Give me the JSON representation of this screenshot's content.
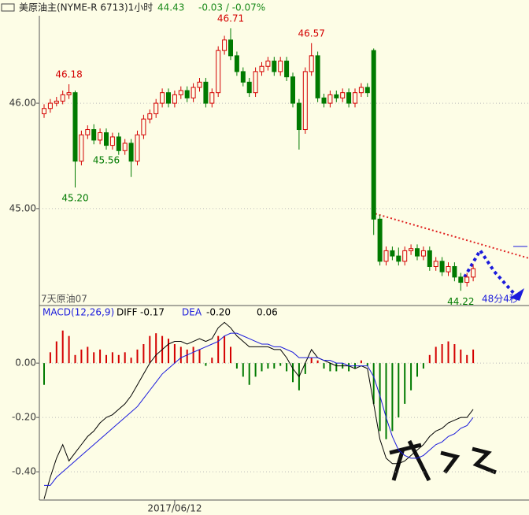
{
  "chart_data": [
    {
      "type": "candlestick",
      "title": "美原油主(NYME-R 6713)1小时",
      "last": 44.43,
      "change": "-0.03 / -0.07%",
      "contract": "7天原油07",
      "countdown": "48分4秒",
      "up_color": "#d40000",
      "down_color": "#007a00",
      "ylim": [
        44.08,
        46.83
      ],
      "yticks": [
        {
          "value": 46,
          "label": "46.00"
        },
        {
          "value": 45,
          "label": "45.00"
        }
      ],
      "grid": true,
      "annotations": [
        46.71,
        46.18,
        46.57,
        {
          "value": 45.2,
          "label": "45.20"
        },
        45.56,
        44.22
      ],
      "open": [
        45.9,
        45.95,
        46.0,
        46.02,
        46.08,
        46.1,
        45.45,
        45.7,
        45.75,
        45.65,
        45.72,
        45.6,
        45.68,
        45.55,
        45.62,
        45.45,
        45.7,
        45.85,
        45.9,
        46.0,
        46.1,
        46.0,
        46.08,
        46.12,
        46.05,
        46.15,
        46.2,
        46.0,
        46.1,
        46.5,
        46.6,
        46.45,
        46.3,
        46.2,
        46.1,
        46.3,
        46.35,
        46.4,
        46.3,
        46.4,
        46.25,
        46.0,
        45.75,
        46.3,
        46.45,
        46.05,
        46.0,
        46.08,
        46.05,
        46.1,
        46.0,
        46.1,
        46.15,
        46.5,
        44.9,
        44.5,
        44.6,
        44.55,
        44.5,
        44.6,
        44.62,
        44.55,
        44.6,
        44.45,
        44.5,
        44.4,
        44.45,
        44.35,
        44.3,
        44.35
      ],
      "high": [
        45.99,
        46.04,
        46.06,
        46.12,
        46.18,
        46.12,
        45.74,
        45.79,
        45.8,
        45.76,
        45.76,
        45.72,
        45.72,
        45.66,
        45.66,
        45.74,
        45.89,
        45.94,
        46.04,
        46.14,
        46.14,
        46.12,
        46.16,
        46.16,
        46.19,
        46.24,
        46.24,
        46.14,
        46.54,
        46.64,
        46.71,
        46.49,
        46.34,
        46.24,
        46.34,
        46.39,
        46.44,
        46.44,
        46.44,
        46.44,
        46.29,
        46.04,
        46.34,
        46.57,
        46.49,
        46.09,
        46.12,
        46.12,
        46.14,
        46.14,
        46.14,
        46.19,
        46.19,
        46.52,
        44.94,
        44.64,
        44.64,
        44.63,
        44.64,
        44.66,
        44.66,
        44.64,
        44.64,
        44.54,
        44.54,
        44.49,
        44.49,
        44.39,
        44.39,
        44.47
      ],
      "low": [
        45.86,
        45.91,
        45.97,
        45.99,
        46.04,
        45.2,
        45.41,
        45.66,
        45.61,
        45.61,
        45.56,
        45.56,
        45.51,
        45.51,
        45.3,
        45.41,
        45.66,
        45.81,
        45.86,
        45.96,
        45.96,
        45.96,
        46.04,
        46.01,
        46.01,
        46.11,
        45.96,
        45.96,
        46.06,
        46.46,
        46.41,
        46.26,
        46.16,
        46.06,
        46.06,
        46.26,
        46.31,
        46.26,
        46.26,
        46.21,
        45.96,
        45.56,
        45.71,
        46.26,
        46.01,
        45.96,
        45.96,
        46.01,
        46.01,
        45.96,
        45.96,
        46.06,
        46.06,
        44.75,
        44.46,
        44.46,
        44.51,
        44.46,
        44.46,
        44.56,
        44.51,
        44.51,
        44.41,
        44.41,
        44.36,
        44.36,
        44.31,
        44.22,
        44.26,
        44.31
      ],
      "close": [
        45.95,
        46.0,
        46.02,
        46.08,
        46.1,
        45.45,
        45.7,
        45.75,
        45.65,
        45.72,
        45.6,
        45.68,
        45.55,
        45.62,
        45.45,
        45.7,
        45.85,
        45.9,
        46.0,
        46.1,
        46.0,
        46.08,
        46.12,
        46.05,
        46.15,
        46.2,
        46.0,
        46.1,
        46.5,
        46.6,
        46.45,
        46.3,
        46.2,
        46.1,
        46.3,
        46.35,
        46.4,
        46.3,
        46.4,
        46.25,
        46.0,
        45.75,
        46.3,
        46.45,
        46.05,
        46.0,
        46.08,
        46.05,
        46.1,
        46.0,
        46.1,
        46.15,
        46.1,
        44.9,
        44.5,
        44.6,
        44.55,
        44.5,
        44.6,
        44.62,
        44.55,
        44.6,
        44.45,
        44.5,
        44.4,
        44.45,
        44.35,
        44.3,
        44.35,
        44.43
      ]
    },
    {
      "type": "macd",
      "title": "MACD(12,26,9)",
      "readout": [
        {
          "name": "DIFF",
          "value": -0.17
        },
        {
          "name": "DEA",
          "value": {
            "value": -0.2,
            "label": "-0.20"
          }
        },
        {
          "value": 0.06
        }
      ],
      "ylim": [
        -0.504,
        0.212
      ],
      "yticks": [
        {
          "value": 0,
          "label": "0.00"
        },
        {
          "value": -0.2,
          "label": "-0.20"
        },
        {
          "value": -0.4,
          "label": "-0.40"
        }
      ],
      "grid": true,
      "categories": [
        null,
        null,
        null,
        null,
        null,
        null,
        null,
        null,
        null,
        null,
        null,
        null,
        null,
        null,
        null,
        null,
        null,
        null,
        null,
        null,
        null,
        "2017/06/12",
        null,
        null,
        null,
        null,
        null,
        null,
        null,
        null,
        null,
        null,
        null,
        null,
        null,
        null,
        null,
        null,
        null,
        null,
        null,
        null,
        null,
        null,
        null,
        null,
        null,
        null,
        null,
        null,
        null,
        null,
        null,
        null,
        null,
        null,
        null,
        null,
        null,
        null,
        null,
        null,
        null,
        null,
        null,
        null,
        null,
        null,
        null,
        null
      ],
      "histogram": [
        -0.08,
        0.04,
        0.08,
        0.12,
        0.1,
        0.03,
        0.05,
        0.06,
        0.04,
        0.05,
        0.03,
        0.04,
        0.03,
        0.04,
        0.02,
        0.05,
        0.07,
        0.1,
        0.11,
        0.1,
        0.09,
        0.07,
        0.06,
        0.05,
        0.06,
        0.05,
        -0.01,
        0.02,
        0.1,
        0.1,
        0.06,
        -0.02,
        -0.05,
        -0.08,
        -0.05,
        -0.03,
        -0.02,
        -0.02,
        -0.01,
        -0.03,
        -0.07,
        -0.1,
        -0.04,
        0.02,
        0.01,
        -0.02,
        -0.03,
        -0.03,
        -0.02,
        -0.03,
        -0.02,
        0.01,
        -0.01,
        -0.15,
        -0.25,
        -0.28,
        -0.25,
        -0.2,
        -0.15,
        -0.1,
        -0.05,
        -0.02,
        0.03,
        0.06,
        0.07,
        0.08,
        0.07,
        0.05,
        0.03,
        0.05
      ],
      "series": [
        {
          "name": "DIFF",
          "color": "#000000",
          "values": [
            -0.5,
            -0.42,
            -0.35,
            -0.3,
            -0.36,
            -0.33,
            -0.3,
            -0.27,
            -0.25,
            -0.22,
            -0.2,
            -0.19,
            -0.17,
            -0.15,
            -0.12,
            -0.08,
            -0.04,
            0.0,
            0.03,
            0.05,
            0.07,
            0.08,
            0.08,
            0.07,
            0.08,
            0.09,
            0.08,
            0.09,
            0.13,
            0.15,
            0.13,
            0.1,
            0.08,
            0.06,
            0.06,
            0.06,
            0.06,
            0.05,
            0.05,
            0.02,
            -0.02,
            -0.05,
            0.0,
            0.05,
            0.02,
            0.01,
            0.0,
            -0.01,
            -0.01,
            -0.01,
            -0.02,
            -0.01,
            -0.02,
            -0.15,
            -0.28,
            -0.35,
            -0.37,
            -0.37,
            -0.36,
            -0.34,
            -0.32,
            -0.3,
            -0.27,
            -0.25,
            -0.24,
            -0.22,
            -0.21,
            -0.2,
            -0.2,
            -0.17
          ]
        },
        {
          "name": "DEA",
          "color": "#1a1adc",
          "values": [
            -0.45,
            -0.45,
            -0.42,
            -0.4,
            -0.38,
            -0.36,
            -0.34,
            -0.32,
            -0.3,
            -0.28,
            -0.26,
            -0.24,
            -0.22,
            -0.2,
            -0.18,
            -0.16,
            -0.13,
            -0.1,
            -0.07,
            -0.04,
            -0.02,
            0.0,
            0.02,
            0.03,
            0.04,
            0.05,
            0.06,
            0.07,
            0.08,
            0.1,
            0.11,
            0.11,
            0.1,
            0.09,
            0.08,
            0.07,
            0.07,
            0.06,
            0.06,
            0.05,
            0.04,
            0.02,
            0.02,
            0.02,
            0.02,
            0.01,
            0.01,
            0.0,
            0.0,
            -0.01,
            -0.01,
            -0.01,
            -0.01,
            -0.05,
            -0.12,
            -0.2,
            -0.27,
            -0.32,
            -0.34,
            -0.35,
            -0.35,
            -0.34,
            -0.32,
            -0.3,
            -0.29,
            -0.27,
            -0.26,
            -0.24,
            -0.23,
            -0.2
          ]
        }
      ]
    }
  ]
}
